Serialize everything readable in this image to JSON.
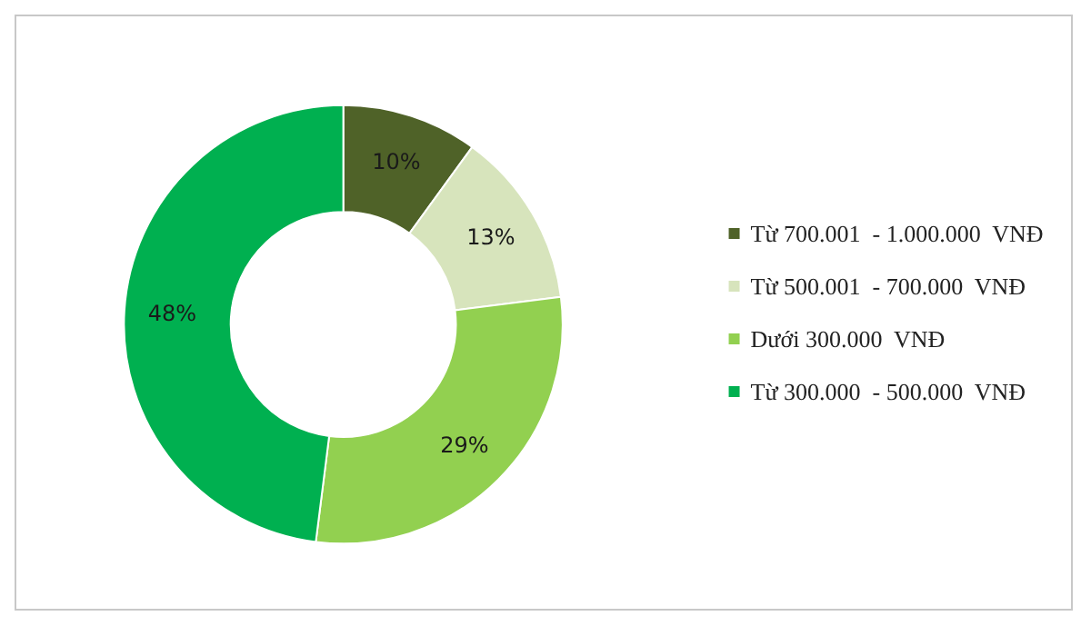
{
  "chart_data": {
    "type": "donut",
    "categories": [
      "Từ 700.001  - 1.000.000  VNĐ",
      "Từ 500.001  - 700.000  VNĐ",
      "Dưới 300.000  VNĐ",
      "Từ 300.000  - 500.000  VNĐ"
    ],
    "values": [
      10,
      13,
      29,
      48
    ],
    "colors": [
      "#4f6228",
      "#d7e4bc",
      "#92d050",
      "#00b050"
    ],
    "value_labels": [
      "10%",
      "13%",
      "29%",
      "48%"
    ],
    "legend": "right"
  }
}
